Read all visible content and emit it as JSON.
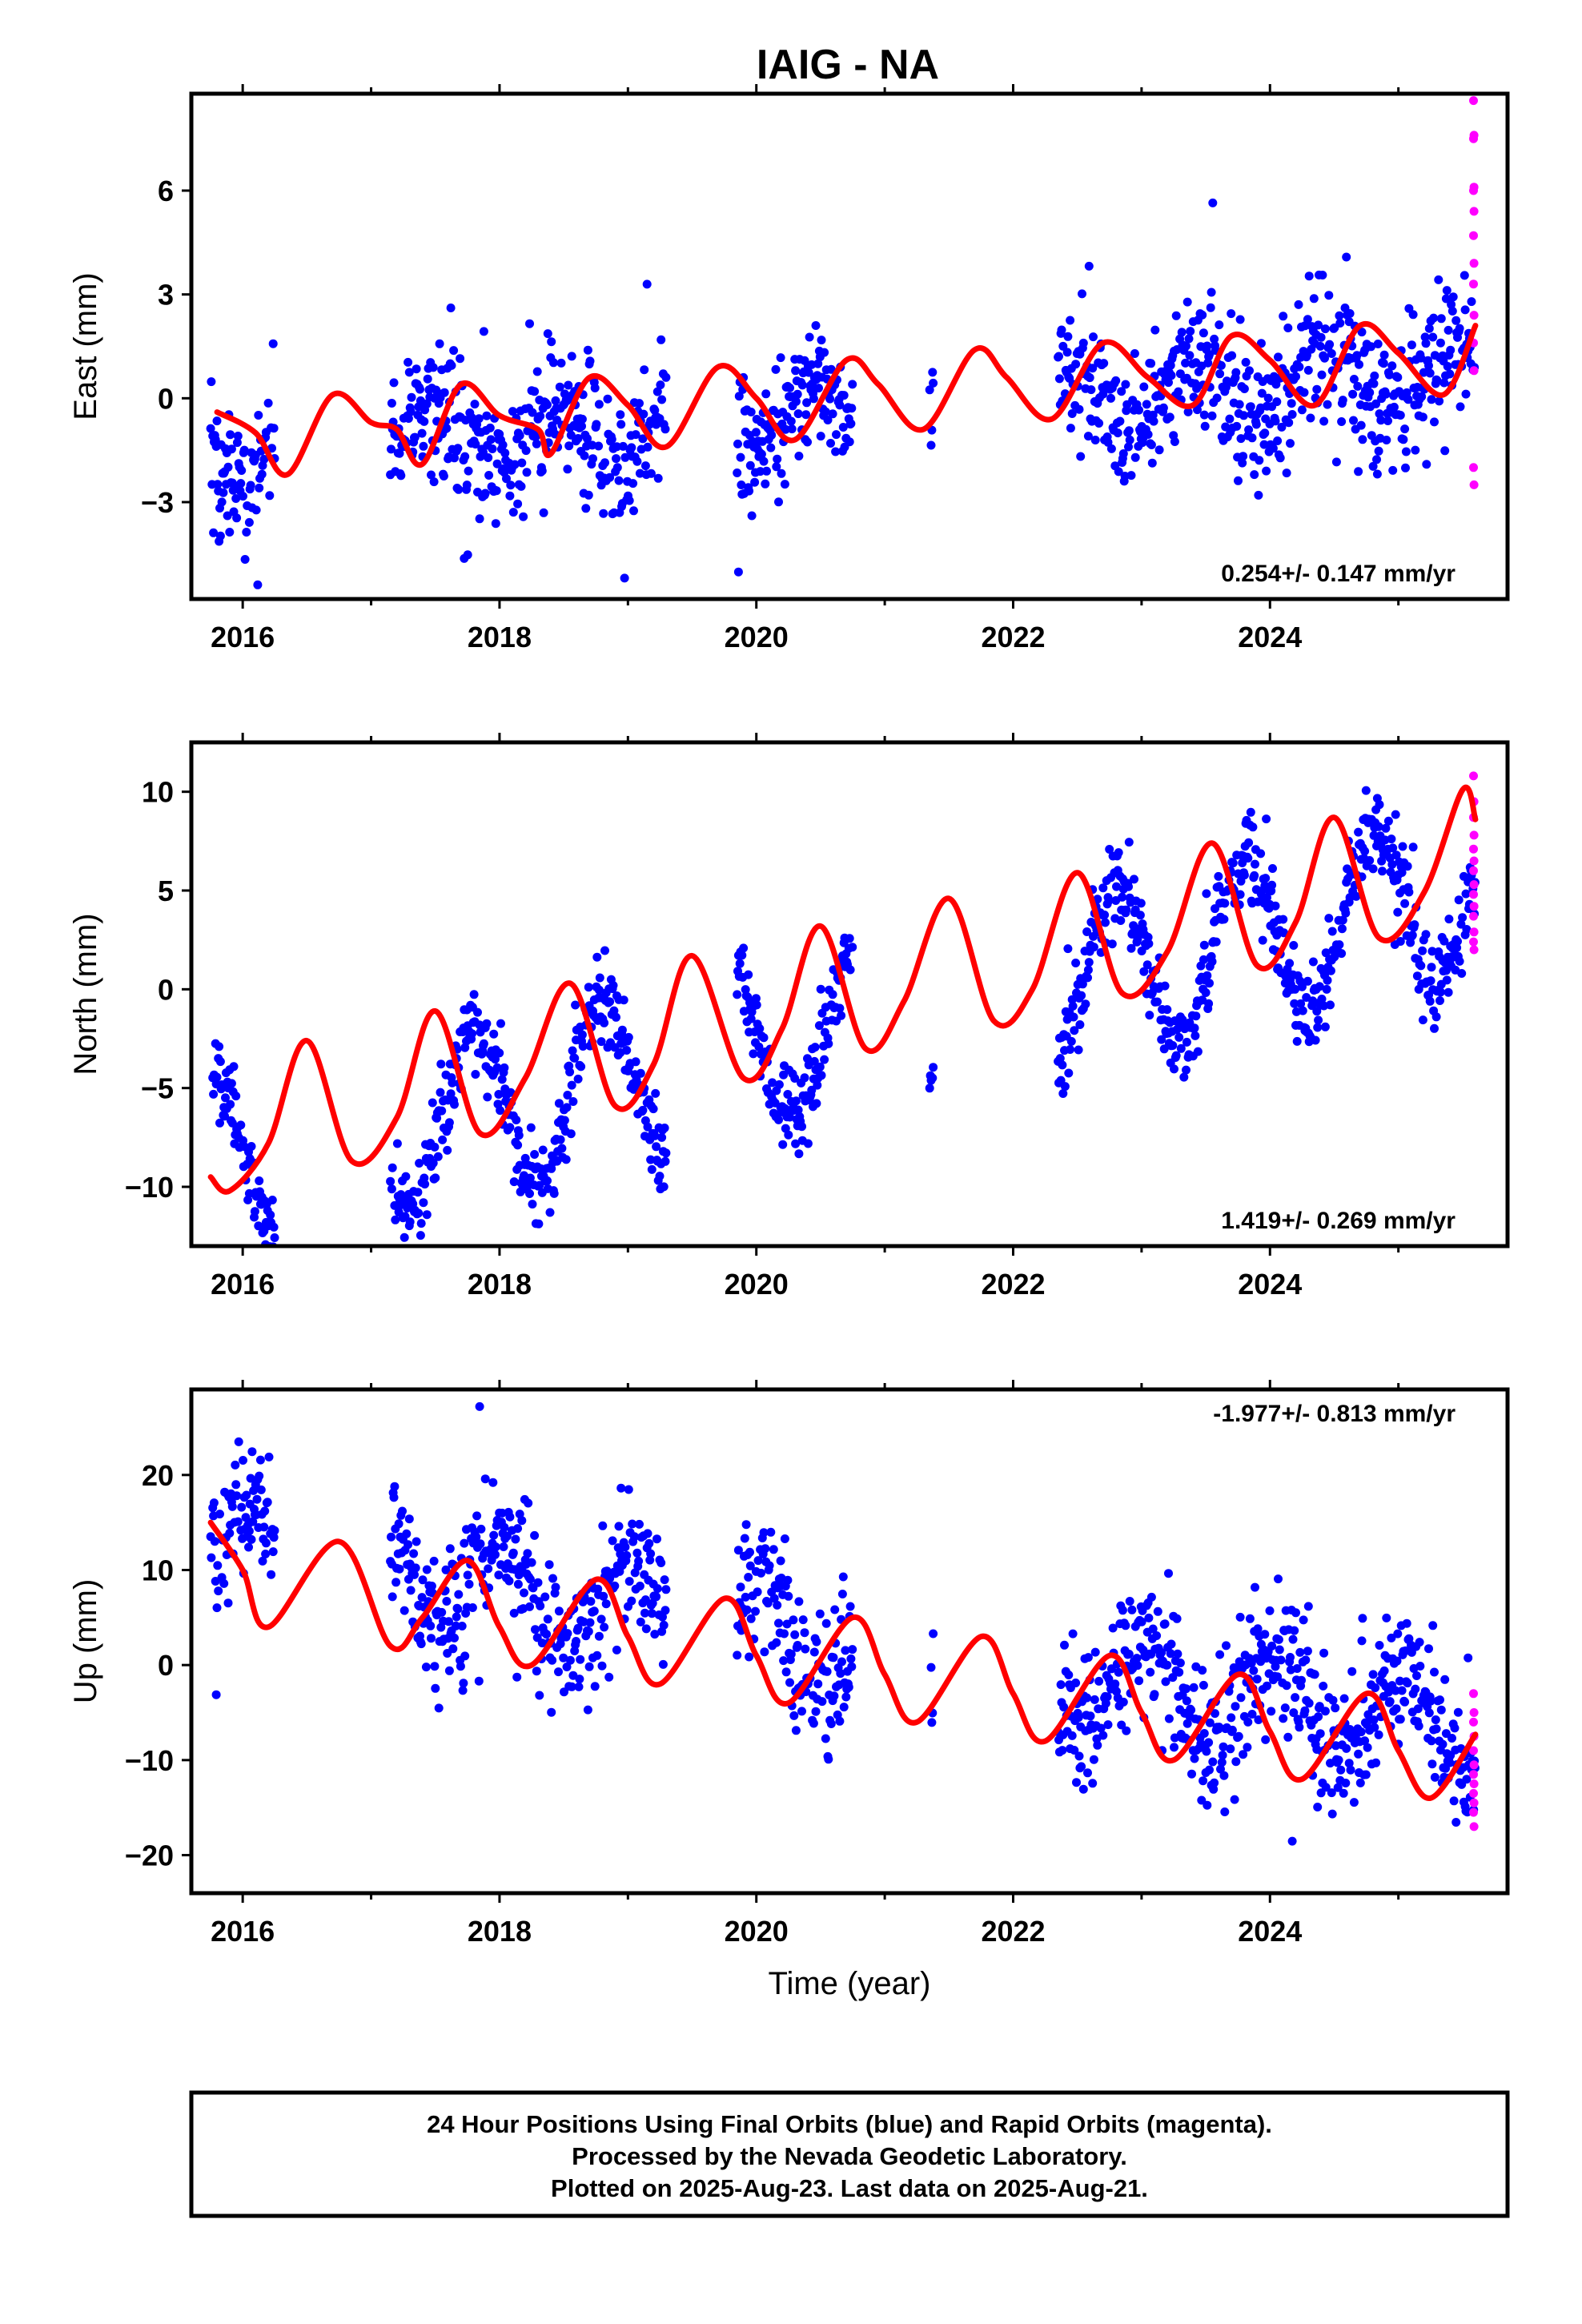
{
  "title": "IAIG - NA",
  "colors": {
    "final": "#0000ff",
    "rapid": "#ff00ff",
    "model": "#ff0000",
    "frame": "#000000"
  },
  "footer": {
    "line1": "24 Hour Positions Using Final Orbits (blue) and Rapid Orbits (magenta).",
    "line2": "Processed by the Nevada Geodetic Laboratory.",
    "line3": "Plotted on 2025-Aug-23. Last data on 2025-Aug-21."
  },
  "chart_data": [
    {
      "type": "scatter",
      "component": "east",
      "ylabel": "East (mm)",
      "rate": "0.254+/- 0.147 mm/yr",
      "rate_position": "bottom-right",
      "xlim": [
        2015.6,
        2025.85
      ],
      "ylim": [
        -5.8,
        8.8
      ],
      "xticks": [
        2016,
        2018,
        2020,
        2022,
        2024
      ],
      "yticks": [
        -3,
        0,
        3,
        6
      ],
      "grid": false,
      "trend": 0.254,
      "offset": -0.5,
      "annual": 0.85,
      "annual_phase": 0.2,
      "noise": 1.0,
      "outlier": 3.7,
      "last_value": 2.1,
      "rapid_values": [
        8.6,
        7.6,
        7.5,
        6.1,
        6.0,
        5.4,
        4.7,
        3.9,
        3.3,
        2.4,
        1.6,
        0.8,
        -2.0,
        -2.5
      ],
      "fit_curve": [
        [
          2015.8,
          -0.4
        ],
        [
          2016.1,
          -1.0
        ],
        [
          2016.35,
          -2.2
        ],
        [
          2016.7,
          0.1
        ],
        [
          2017.0,
          -0.7
        ],
        [
          2017.2,
          -0.9
        ],
        [
          2017.4,
          -1.9
        ],
        [
          2017.7,
          0.4
        ],
        [
          2018.0,
          -0.5
        ],
        [
          2018.3,
          -0.9
        ],
        [
          2018.4,
          -1.6
        ],
        [
          2018.7,
          0.6
        ],
        [
          2019.0,
          -0.2
        ],
        [
          2019.3,
          -1.4
        ],
        [
          2019.7,
          0.9
        ],
        [
          2020.0,
          0.0
        ],
        [
          2020.3,
          -1.2
        ],
        [
          2020.7,
          1.1
        ],
        [
          2020.95,
          0.4
        ],
        [
          2021.3,
          -0.9
        ],
        [
          2021.7,
          1.4
        ],
        [
          2021.95,
          0.6
        ],
        [
          2022.3,
          -0.6
        ],
        [
          2022.7,
          1.6
        ],
        [
          2023.05,
          0.6
        ],
        [
          2023.4,
          -0.2
        ],
        [
          2023.7,
          1.8
        ],
        [
          2024.0,
          1.1
        ],
        [
          2024.35,
          -0.2
        ],
        [
          2024.7,
          2.1
        ],
        [
          2025.0,
          1.3
        ],
        [
          2025.35,
          0.1
        ],
        [
          2025.6,
          2.1
        ]
      ]
    },
    {
      "type": "scatter",
      "component": "north",
      "ylabel": "North (mm)",
      "rate": "1.419+/- 0.269 mm/yr",
      "rate_position": "bottom-right",
      "xlim": [
        2015.6,
        2025.85
      ],
      "ylim": [
        -13,
        12.5
      ],
      "xticks": [
        2016,
        2018,
        2020,
        2022,
        2024
      ],
      "yticks": [
        -10,
        -5,
        0,
        5,
        10
      ],
      "grid": false,
      "trend": 1.419,
      "offset": -2.3,
      "annual": 4.2,
      "annual_phase": 0.55,
      "noise": 1.1,
      "outlier": 3.5,
      "last_value": 8.6,
      "rapid_values": [
        10.8,
        9.5,
        8.7,
        7.8,
        7.1,
        6.5,
        6.0,
        5.3,
        4.8,
        4.2,
        3.7,
        2.9,
        2.4,
        2.0
      ],
      "fit_curve": [
        [
          2015.75,
          -9.5
        ],
        [
          2015.9,
          -10.2
        ],
        [
          2016.2,
          -7.8
        ],
        [
          2016.5,
          -2.6
        ],
        [
          2016.85,
          -8.7
        ],
        [
          2017.2,
          -6.5
        ],
        [
          2017.5,
          -1.1
        ],
        [
          2017.85,
          -7.3
        ],
        [
          2018.2,
          -4.5
        ],
        [
          2018.55,
          0.3
        ],
        [
          2018.9,
          -5.9
        ],
        [
          2019.2,
          -3.8
        ],
        [
          2019.5,
          1.7
        ],
        [
          2019.9,
          -4.5
        ],
        [
          2020.2,
          -2.0
        ],
        [
          2020.5,
          3.2
        ],
        [
          2020.85,
          -3.0
        ],
        [
          2021.15,
          -0.6
        ],
        [
          2021.5,
          4.6
        ],
        [
          2021.85,
          -1.6
        ],
        [
          2022.15,
          0.0
        ],
        [
          2022.5,
          5.9
        ],
        [
          2022.85,
          -0.2
        ],
        [
          2023.2,
          1.9
        ],
        [
          2023.55,
          7.4
        ],
        [
          2023.9,
          1.2
        ],
        [
          2024.2,
          3.4
        ],
        [
          2024.5,
          8.7
        ],
        [
          2024.85,
          2.6
        ],
        [
          2025.2,
          4.9
        ],
        [
          2025.5,
          10.1
        ],
        [
          2025.6,
          8.6
        ]
      ]
    },
    {
      "type": "scatter",
      "component": "up",
      "ylabel": "Up (mm)",
      "xlabel": "Time (year)",
      "rate": "-1.977+/- 0.813 mm/yr",
      "rate_position": "top-right",
      "xlim": [
        2015.6,
        2025.85
      ],
      "ylim": [
        -24,
        29
      ],
      "xticks": [
        2016,
        2018,
        2020,
        2022,
        2024
      ],
      "yticks": [
        -20,
        -10,
        0,
        10,
        20
      ],
      "grid": false,
      "trend": -1.977,
      "offset": 3.0,
      "annual": 5.0,
      "annual_phase": 0.78,
      "noise": 3.6,
      "outlier": 12.0,
      "last_value": -7.3,
      "rapid_values": [
        -3.0,
        -5.0,
        -6.0,
        -7.5,
        -9.0,
        -10.5,
        -11.5,
        -12.5,
        -13.5,
        -14.5,
        -15.5,
        -17.0
      ],
      "fit_curve": [
        [
          2015.75,
          15.0
        ],
        [
          2016.0,
          10.0
        ],
        [
          2016.2,
          4.0
        ],
        [
          2016.75,
          13.0
        ],
        [
          2017.15,
          2.0
        ],
        [
          2017.4,
          5.0
        ],
        [
          2017.75,
          11.0
        ],
        [
          2018.0,
          4.0
        ],
        [
          2018.25,
          0.0
        ],
        [
          2018.75,
          9.0
        ],
        [
          2019.0,
          3.0
        ],
        [
          2019.25,
          -2.0
        ],
        [
          2019.75,
          7.0
        ],
        [
          2020.0,
          1.0
        ],
        [
          2020.25,
          -4.0
        ],
        [
          2020.75,
          5.0
        ],
        [
          2021.0,
          -1.0
        ],
        [
          2021.25,
          -6.0
        ],
        [
          2021.75,
          3.0
        ],
        [
          2022.0,
          -3.0
        ],
        [
          2022.25,
          -8.0
        ],
        [
          2022.75,
          1.0
        ],
        [
          2023.0,
          -5.0
        ],
        [
          2023.25,
          -10.0
        ],
        [
          2023.75,
          -1.0
        ],
        [
          2024.0,
          -7.0
        ],
        [
          2024.25,
          -12.0
        ],
        [
          2024.75,
          -3.0
        ],
        [
          2025.0,
          -9.0
        ],
        [
          2025.25,
          -14.0
        ],
        [
          2025.6,
          -7.3
        ]
      ]
    }
  ],
  "data_spans": [
    [
      2015.75,
      2016.25
    ],
    [
      2017.15,
      2019.3
    ],
    [
      2019.85,
      2020.75
    ],
    [
      2021.35,
      2021.38
    ],
    [
      2022.35,
      2025.6
    ]
  ]
}
